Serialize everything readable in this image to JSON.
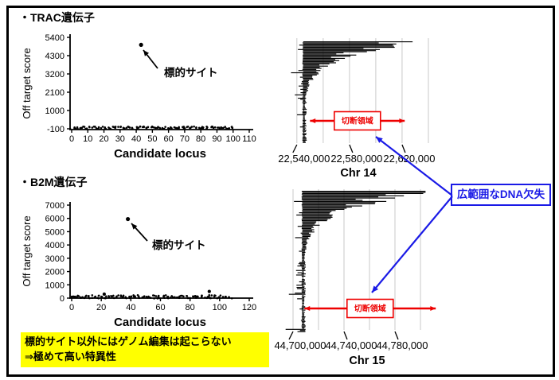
{
  "colors": {
    "accent_red": "#ee0000",
    "accent_blue": "#1a1ae6",
    "highlight_yellow": "#ffff00",
    "bar_black": "#000000",
    "grid_gray": "#c9c9c9"
  },
  "trac": {
    "heading": "・TRAC遺伝子",
    "target_label": "標的サイト"
  },
  "b2m": {
    "heading": "・B2M遺伝子",
    "target_label": "標的サイト"
  },
  "callout": {
    "label": "広範囲なDNA欠失"
  },
  "cleavage_label": "切断領域",
  "note": {
    "line1": "標的サイト以外にはゲノム編集は起こらない",
    "line2": "⇒極めて高い特異性"
  },
  "chart_data": [
    {
      "id": "trac_offtarget",
      "type": "scatter",
      "gene": "TRAC",
      "xlabel": "Candidate locus",
      "ylabel": "Off target score",
      "xlim": [
        0,
        110
      ],
      "xticks": [
        0,
        10,
        20,
        30,
        40,
        50,
        60,
        70,
        80,
        90,
        100,
        110
      ],
      "ylim": [
        -100,
        5400
      ],
      "yticks": [
        5400,
        4300,
        3200,
        2100,
        1000,
        -100
      ],
      "target_point": {
        "x": 43,
        "y": 4950,
        "label": "標的サイト"
      },
      "outliers": [],
      "baseline": {
        "n": 120,
        "x_min": 0,
        "x_max": 100,
        "y_center": -50,
        "y_jitter": 85,
        "y_min": -100,
        "y_max": 60,
        "seed": 7
      }
    },
    {
      "id": "b2m_offtarget",
      "type": "scatter",
      "gene": "B2M",
      "xlabel": "Candidate locus",
      "ylabel": "Off target score",
      "xlim": [
        0,
        120
      ],
      "xticks": [
        0,
        20,
        40,
        60,
        80,
        100,
        120
      ],
      "ylim": [
        0,
        7000
      ],
      "yticks": [
        7000,
        6000,
        5000,
        4000,
        3000,
        2000,
        1000,
        0
      ],
      "target_point": {
        "x": 38,
        "y": 5950,
        "label": "標的サイト"
      },
      "outliers": [
        {
          "x": 93,
          "y": 500
        },
        {
          "x": 22,
          "y": 300
        }
      ],
      "baseline": {
        "n": 130,
        "x_min": 0,
        "x_max": 108,
        "y_center": 100,
        "y_jitter": 120,
        "y_min": -20,
        "y_max": 320,
        "seed": 11
      }
    },
    {
      "id": "chr14_deletions",
      "type": "bar-horizontal",
      "title": "Chr 14",
      "axis": {
        "min": 22528000,
        "max": 22660000,
        "gridline_values": [
          22540000,
          22560000,
          22580000,
          22600000,
          22620000,
          22640000
        ],
        "labeled_ticks": [
          {
            "value": 22540000,
            "label": "22,540,000",
            "slant": "left"
          },
          {
            "value": 22580000,
            "label": "22,580,000",
            "slant": "right"
          },
          {
            "value": 22620000,
            "label": "22,620,000",
            "slant": "right"
          }
        ]
      },
      "cut_site": 22545000,
      "bars": {
        "n": 92,
        "max_extent": 22628000,
        "decay_tau": 13,
        "min_len": 1200,
        "left_whisker_max": 9000,
        "seed": 3
      },
      "cleavage_region": {
        "start": 22550000,
        "end": 22622000
      }
    },
    {
      "id": "chr15_deletions",
      "type": "bar-horizontal",
      "title": "Chr 15",
      "axis": {
        "min": 44690000,
        "max": 44830000,
        "gridline_values": [
          44700000,
          44720000,
          44740000,
          44760000,
          44780000,
          44800000
        ],
        "labeled_ticks": [
          {
            "value": 44700000,
            "label": "44,700,000",
            "slant": "left"
          },
          {
            "value": 44740000,
            "label": "44,740,000",
            "slant": "right"
          },
          {
            "value": 44780000,
            "label": "44,780,000",
            "slant": "right"
          }
        ]
      },
      "cut_site": 44707500,
      "bars": {
        "n": 125,
        "max_extent": 44804000,
        "decay_tau": 14,
        "min_len": 1200,
        "left_whisker_max": 14000,
        "seed": 5
      },
      "cleavage_region": {
        "start": 44709000,
        "end": 44812000
      }
    }
  ]
}
